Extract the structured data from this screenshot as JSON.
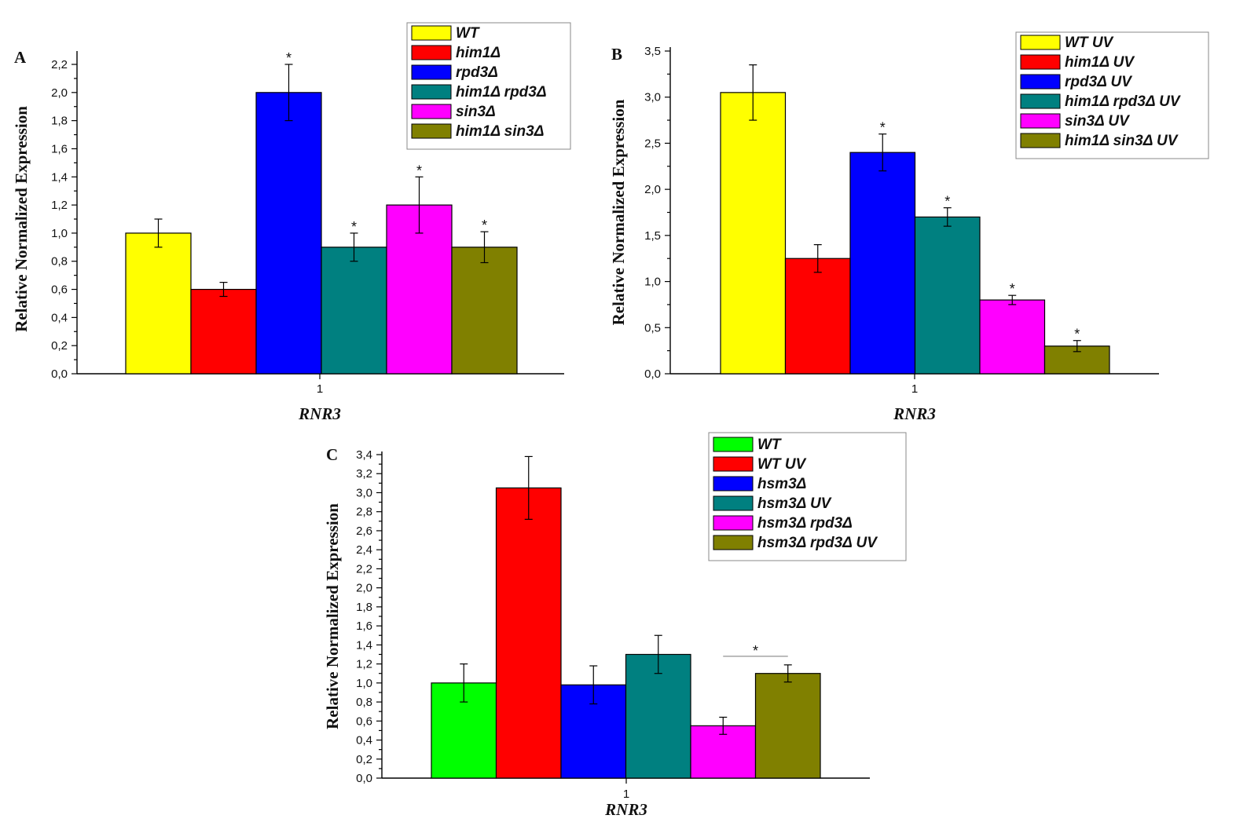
{
  "chart_data": [
    {
      "type": "bar",
      "panel": "A",
      "categories": [
        "1"
      ],
      "xlabel": "RNR3",
      "ylabel": "Relative Normalized Expression",
      "ylim": [
        0,
        2.2
      ],
      "ytick_step": 0.2,
      "ytick_decimals": 1,
      "legend_position": "top-right",
      "series": [
        {
          "name": "WT",
          "values": [
            1.0
          ],
          "error": [
            0.1
          ],
          "color": "#ffff00",
          "significant": false
        },
        {
          "name": "him1Δ",
          "values": [
            0.6
          ],
          "error": [
            0.05
          ],
          "color": "#ff0000",
          "significant": false
        },
        {
          "name": "rpd3Δ",
          "values": [
            2.0
          ],
          "error": [
            0.2
          ],
          "color": "#0000ff",
          "significant": true
        },
        {
          "name": "him1Δ rpd3Δ",
          "values": [
            0.9
          ],
          "error": [
            0.1
          ],
          "color": "#008080",
          "significant": true
        },
        {
          "name": "sin3Δ",
          "values": [
            1.2
          ],
          "error": [
            0.2
          ],
          "color": "#ff00ff",
          "significant": true
        },
        {
          "name": "him1Δ sin3Δ",
          "values": [
            0.9
          ],
          "error": [
            0.11
          ],
          "color": "#808000",
          "significant": true
        }
      ]
    },
    {
      "type": "bar",
      "panel": "B",
      "categories": [
        "1"
      ],
      "xlabel": "RNR3",
      "ylabel": "Relative Normalized Expression",
      "ylim": [
        0,
        3.5
      ],
      "ytick_step": 0.5,
      "ytick_decimals": 1,
      "legend_position": "top-right",
      "series": [
        {
          "name": "WT UV",
          "values": [
            3.05
          ],
          "error": [
            0.3
          ],
          "color": "#ffff00",
          "significant": false
        },
        {
          "name": "him1Δ UV",
          "values": [
            1.25
          ],
          "error": [
            0.15
          ],
          "color": "#ff0000",
          "significant": false
        },
        {
          "name": "rpd3Δ UV",
          "values": [
            2.4
          ],
          "error": [
            0.2
          ],
          "color": "#0000ff",
          "significant": true
        },
        {
          "name": "him1Δ rpd3Δ UV",
          "values": [
            1.7
          ],
          "error": [
            0.1
          ],
          "color": "#008080",
          "significant": true
        },
        {
          "name": "sin3Δ UV",
          "values": [
            0.8
          ],
          "error": [
            0.05
          ],
          "color": "#ff00ff",
          "significant": true
        },
        {
          "name": "him1Δ sin3Δ UV",
          "values": [
            0.3
          ],
          "error": [
            0.06
          ],
          "color": "#808000",
          "significant": true
        }
      ]
    },
    {
      "type": "bar",
      "panel": "C",
      "categories": [
        "1"
      ],
      "xlabel": "RNR3",
      "ylabel": "Relative Normalized Expression",
      "ylim": [
        0,
        3.4
      ],
      "ytick_step": 0.2,
      "ytick_decimals": 1,
      "legend_position": "top-right",
      "series": [
        {
          "name": "WT",
          "values": [
            1.0
          ],
          "error": [
            0.2
          ],
          "color": "#00ff00",
          "significant": false
        },
        {
          "name": "WT UV",
          "values": [
            3.05
          ],
          "error": [
            0.33
          ],
          "color": "#ff0000",
          "significant": false
        },
        {
          "name": "hsm3Δ",
          "values": [
            0.98
          ],
          "error": [
            0.2
          ],
          "color": "#0000ff",
          "significant": false
        },
        {
          "name": "hsm3Δ UV",
          "values": [
            1.3
          ],
          "error": [
            0.2
          ],
          "color": "#008080",
          "significant": false
        },
        {
          "name": "hsm3Δ rpd3Δ",
          "values": [
            0.55
          ],
          "error": [
            0.09
          ],
          "color": "#ff00ff",
          "significant": false
        },
        {
          "name": "hsm3Δ rpd3Δ UV",
          "values": [
            1.1
          ],
          "error": [
            0.09
          ],
          "color": "#808000",
          "significant": false
        }
      ],
      "significance_bracket": {
        "from_series": 4,
        "to_series": 5,
        "label": "*"
      }
    }
  ]
}
